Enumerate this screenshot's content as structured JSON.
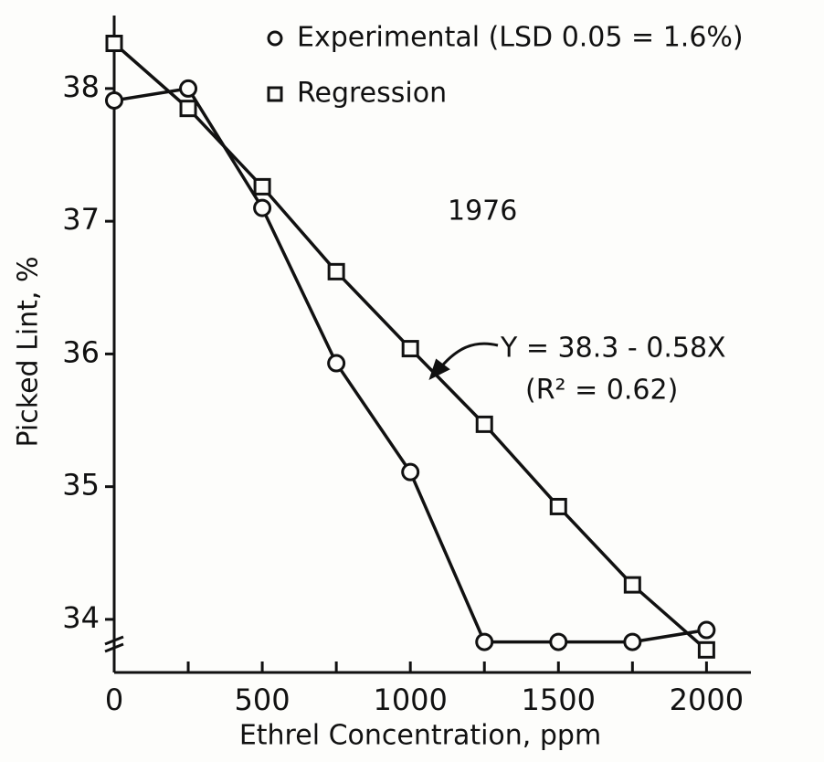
{
  "chart_data": {
    "type": "line",
    "xlabel": "Ethrel Concentration, ppm",
    "ylabel": "Picked Lint, %",
    "annotations": [
      "1976",
      "Y = 38.3 - 0.58X",
      "(R² = 0.62)"
    ],
    "x": [
      0,
      250,
      500,
      750,
      1000,
      1250,
      1500,
      1750,
      2000
    ],
    "series": [
      {
        "name": "Experimental (LSD 0.05 = 1.6%)",
        "color": "#111111",
        "marker": "circle",
        "values": [
          37.91,
          38.0,
          37.1,
          35.93,
          35.11,
          33.83,
          33.83,
          33.83,
          33.92
        ]
      },
      {
        "name": "Regression",
        "color": "#111111",
        "marker": "square",
        "values": [
          38.34,
          37.85,
          37.26,
          36.62,
          36.04,
          35.47,
          34.85,
          34.26,
          33.77
        ]
      }
    ],
    "xlim": [
      0,
      2150
    ],
    "ylim": [
      33.6,
      38.55
    ],
    "xticks": [
      0,
      500,
      1000,
      1500,
      2000
    ],
    "xminor_ticks": [
      250,
      750,
      1250,
      1750
    ],
    "yticks": [
      34,
      35,
      36,
      37,
      38
    ],
    "grid": false
  }
}
